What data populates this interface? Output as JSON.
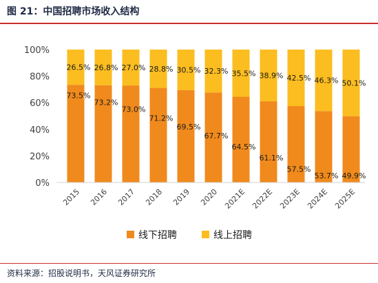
{
  "header": {
    "title": "图 21：中国招聘市场收入结构"
  },
  "footer": {
    "source": "资料来源：招股说明书，天风证券研究所"
  },
  "chart_data": {
    "type": "bar",
    "stacked": true,
    "categories": [
      "2015",
      "2016",
      "2017",
      "2018",
      "2019",
      "2020",
      "2021E",
      "2022E",
      "2023E",
      "2024E",
      "2025E"
    ],
    "series": [
      {
        "name": "线下招聘",
        "color": "#f08a1c",
        "values": [
          73.5,
          73.2,
          73.0,
          71.2,
          69.5,
          67.7,
          64.5,
          61.1,
          57.5,
          53.7,
          49.9
        ],
        "labels": [
          "73.5%",
          "73.2%",
          "73.0%",
          "71.2%",
          "69.5%",
          "67.7%",
          "64.5%",
          "61.1%",
          "57.5%",
          "53.7%",
          "49.9%"
        ]
      },
      {
        "name": "线上招聘",
        "color": "#fbbd1f",
        "values": [
          26.5,
          26.8,
          27.0,
          28.8,
          30.5,
          32.3,
          35.5,
          38.9,
          42.5,
          46.3,
          50.1
        ],
        "labels": [
          "26.5%",
          "26.8%",
          "27.0%",
          "28.8%",
          "30.5%",
          "32.3%",
          "35.5%",
          "38.9%",
          "42.5%",
          "46.3%",
          "50.1%"
        ]
      }
    ],
    "ylim": [
      0,
      100
    ],
    "yticks": [
      "0%",
      "20%",
      "40%",
      "60%",
      "80%",
      "100%"
    ],
    "legend": "bottom",
    "grid": false
  }
}
